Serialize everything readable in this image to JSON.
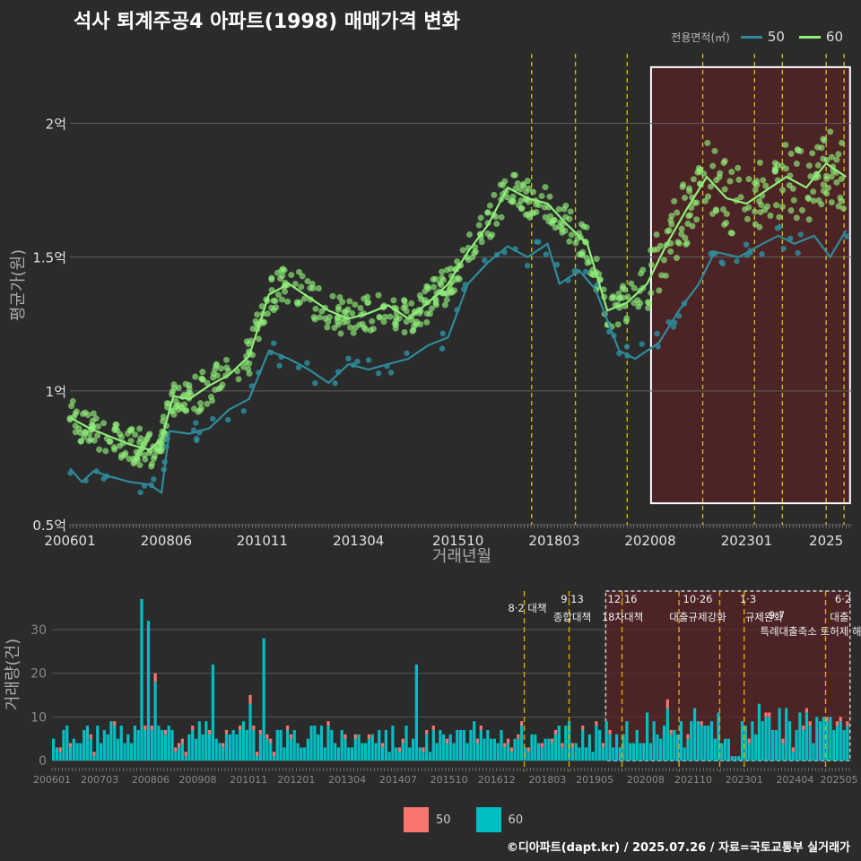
{
  "title": "석사 퇴계주공4 아파트(1998) 매매가격 변화",
  "footer": "©디아파트(dapt.kr) / 2025.07.26 / 자료=국토교통부 실거래가",
  "legend_top": {
    "label": "전용면적(㎡)",
    "items": [
      {
        "name": "50",
        "color": "#2e8b9a"
      },
      {
        "name": "60",
        "color": "#90ee7a"
      }
    ]
  },
  "legend_bottom": {
    "items": [
      {
        "name": "50",
        "color": "#f8766d"
      },
      {
        "name": "60",
        "color": "#00bfc4"
      }
    ]
  },
  "chart_data": [
    {
      "type": "line",
      "xlabel": "거래년월",
      "ylabel": "평균가(원)",
      "ylim": [
        0.5,
        2.3
      ],
      "y_unit": "억",
      "y_ticks": [
        {
          "v": 0.5,
          "label": "0.5억"
        },
        {
          "v": 1.0,
          "label": "1억"
        },
        {
          "v": 1.5,
          "label": "1.5억"
        },
        {
          "v": 2.0,
          "label": "2억"
        }
      ],
      "x_ticks": [
        "200601",
        "200806",
        "201011",
        "201304",
        "201510",
        "201803",
        "202008",
        "202301",
        "2025"
      ],
      "series": [
        {
          "name": "50",
          "color": "#2e8b9a",
          "points": [
            [
              2006.0,
              0.71
            ],
            [
              2006.3,
              0.66
            ],
            [
              2006.6,
              0.7
            ],
            [
              2007.0,
              0.68
            ],
            [
              2007.5,
              0.66
            ],
            [
              2008.0,
              0.65
            ],
            [
              2008.3,
              0.62
            ],
            [
              2008.5,
              0.85
            ],
            [
              2009.0,
              0.84
            ],
            [
              2009.5,
              0.86
            ],
            [
              2010.0,
              0.93
            ],
            [
              2010.5,
              0.97
            ],
            [
              2011.0,
              1.15
            ],
            [
              2011.5,
              1.12
            ],
            [
              2012.0,
              1.08
            ],
            [
              2012.5,
              1.03
            ],
            [
              2013.0,
              1.1
            ],
            [
              2013.5,
              1.08
            ],
            [
              2014.0,
              1.1
            ],
            [
              2014.5,
              1.12
            ],
            [
              2015.0,
              1.17
            ],
            [
              2015.5,
              1.2
            ],
            [
              2016.0,
              1.4
            ],
            [
              2016.5,
              1.48
            ],
            [
              2017.0,
              1.54
            ],
            [
              2017.5,
              1.5
            ],
            [
              2018.0,
              1.55
            ],
            [
              2018.3,
              1.4
            ],
            [
              2018.8,
              1.45
            ],
            [
              2019.2,
              1.38
            ],
            [
              2019.8,
              1.15
            ],
            [
              2020.2,
              1.12
            ],
            [
              2020.8,
              1.18
            ],
            [
              2021.3,
              1.3
            ],
            [
              2021.8,
              1.4
            ],
            [
              2022.2,
              1.52
            ],
            [
              2022.8,
              1.5
            ],
            [
              2023.4,
              1.55
            ],
            [
              2023.8,
              1.58
            ],
            [
              2024.2,
              1.55
            ],
            [
              2024.7,
              1.58
            ],
            [
              2025.1,
              1.5
            ],
            [
              2025.5,
              1.6
            ]
          ]
        },
        {
          "name": "60",
          "color": "#90ee7a",
          "points": [
            [
              2006.0,
              0.9
            ],
            [
              2006.5,
              0.86
            ],
            [
              2007.0,
              0.83
            ],
            [
              2007.5,
              0.8
            ],
            [
              2008.0,
              0.78
            ],
            [
              2008.3,
              0.82
            ],
            [
              2008.6,
              0.98
            ],
            [
              2009.0,
              0.97
            ],
            [
              2009.5,
              1.02
            ],
            [
              2010.0,
              1.06
            ],
            [
              2010.5,
              1.13
            ],
            [
              2011.0,
              1.36
            ],
            [
              2011.5,
              1.4
            ],
            [
              2012.0,
              1.35
            ],
            [
              2012.5,
              1.3
            ],
            [
              2013.0,
              1.27
            ],
            [
              2013.5,
              1.29
            ],
            [
              2014.0,
              1.32
            ],
            [
              2014.5,
              1.27
            ],
            [
              2015.0,
              1.33
            ],
            [
              2015.5,
              1.4
            ],
            [
              2016.0,
              1.52
            ],
            [
              2016.5,
              1.62
            ],
            [
              2017.0,
              1.76
            ],
            [
              2017.5,
              1.72
            ],
            [
              2018.0,
              1.7
            ],
            [
              2018.5,
              1.62
            ],
            [
              2019.0,
              1.55
            ],
            [
              2019.5,
              1.3
            ],
            [
              2020.0,
              1.33
            ],
            [
              2020.5,
              1.4
            ],
            [
              2021.0,
              1.55
            ],
            [
              2021.5,
              1.68
            ],
            [
              2022.0,
              1.8
            ],
            [
              2022.5,
              1.72
            ],
            [
              2023.0,
              1.7
            ],
            [
              2023.5,
              1.75
            ],
            [
              2024.0,
              1.8
            ],
            [
              2024.5,
              1.76
            ],
            [
              2025.0,
              1.85
            ],
            [
              2025.5,
              1.8
            ]
          ]
        }
      ],
      "policy_lines": [
        2017.6,
        2018.7,
        2020.0,
        2021.9,
        2023.2,
        2023.9,
        2025.0,
        2025.45
      ],
      "highlight_box": {
        "x_from": 2020.6,
        "x_to": 2025.6,
        "y_from": 0.58,
        "y_to": 2.21
      }
    },
    {
      "type": "bar",
      "ylabel": "거래량(건)",
      "ylim": [
        0,
        38
      ],
      "y_ticks": [
        "0",
        "10",
        "20",
        "30"
      ],
      "x_ticks": [
        "200601",
        "200703",
        "200806",
        "200908",
        "201011",
        "201201",
        "201304",
        "201407",
        "201510",
        "201612",
        "201803",
        "201905",
        "202008",
        "202110",
        "202301",
        "202404",
        "202505"
      ],
      "policies": [
        {
          "x": 2017.6,
          "date": "8·2",
          "name": "대책"
        },
        {
          "x": 2018.7,
          "date": "9·13",
          "name": "종합대책"
        },
        {
          "x": 2020.0,
          "date": "12·16",
          "name": "18차대책"
        },
        {
          "x": 2021.4,
          "date": "10·26",
          "name": "대출규제강화"
        },
        {
          "x": 2022.4,
          "date": "1·3",
          "name": "규제완화"
        },
        {
          "x": 2023.0,
          "date": "9·7",
          "name": "특례대출축소 토허제 해"
        },
        {
          "x": 2025.0,
          "date": "6·2",
          "name": "대출"
        }
      ],
      "highlight_box": {
        "x_from": 2019.6,
        "x_to": 2025.6
      },
      "volume_peaks": [
        [
          2008.2,
          37
        ],
        [
          2008.35,
          32
        ],
        [
          2008.5,
          20
        ],
        [
          2009.9,
          22
        ],
        [
          2011.15,
          28
        ],
        [
          2010.8,
          15
        ],
        [
          2014.9,
          22
        ],
        [
          2021.1,
          14
        ],
        [
          2024.5,
          12
        ]
      ]
    }
  ]
}
